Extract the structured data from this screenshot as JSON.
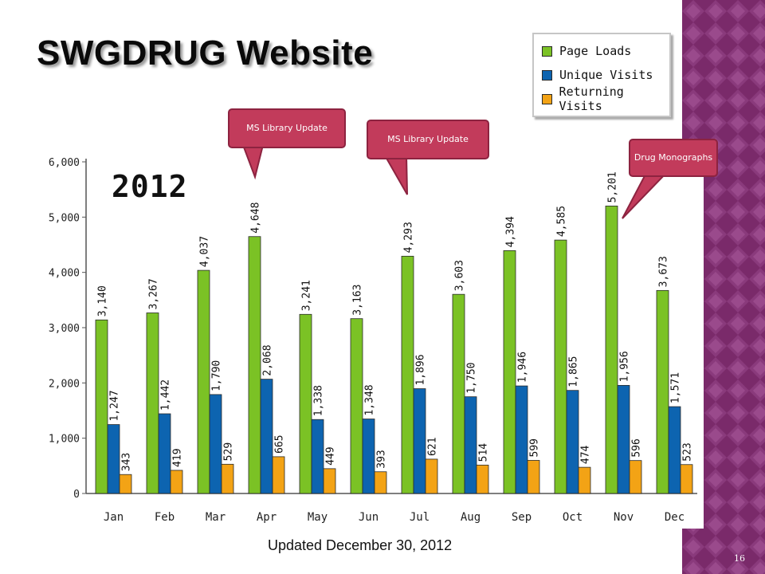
{
  "slide": {
    "title": "SWGDRUG Website",
    "year_label": "2012",
    "updated_text": "Updated December 30, 2012",
    "slide_number": "16",
    "accent_color": "#7a2a6a"
  },
  "callouts": [
    {
      "text": "MS Library Update",
      "color": "#c23b5b"
    },
    {
      "text": "MS Library Update",
      "color": "#c23b5b"
    },
    {
      "text": "Drug Monographs",
      "color": "#c23b5b"
    }
  ],
  "chart_data": {
    "type": "bar",
    "title": "",
    "xlabel": "",
    "ylabel": "",
    "ylim": [
      0,
      6000
    ],
    "yticks": [
      "0",
      "1,000",
      "2,000",
      "3,000",
      "4,000",
      "5,000",
      "6,000"
    ],
    "grid": false,
    "legend_position": "top-right",
    "categories": [
      "Jan",
      "Feb",
      "Mar",
      "Apr",
      "May",
      "Jun",
      "Jul",
      "Aug",
      "Sep",
      "Oct",
      "Nov",
      "Dec"
    ],
    "series": [
      {
        "name": "Page Loads",
        "color": "#7bc225",
        "values": [
          3140,
          3267,
          4037,
          4648,
          3241,
          3163,
          4293,
          3603,
          4394,
          4585,
          5201,
          3673
        ],
        "labels": [
          "3,140",
          "3,267",
          "4,037",
          "4,648",
          "3,241",
          "3,163",
          "4,293",
          "3,603",
          "4,394",
          "4,585",
          "5,201",
          "3,673"
        ]
      },
      {
        "name": "Unique Visits",
        "color": "#0d64b0",
        "values": [
          1247,
          1442,
          1790,
          2068,
          1338,
          1348,
          1896,
          1750,
          1946,
          1865,
          1956,
          1571
        ],
        "labels": [
          "1,247",
          "1,442",
          "1,790",
          "2,068",
          "1,338",
          "1,348",
          "1,896",
          "1,750",
          "1,946",
          "1,865",
          "1,956",
          "1,571"
        ]
      },
      {
        "name": "Returning Visits",
        "color": "#f3a315",
        "values": [
          343,
          419,
          529,
          665,
          449,
          393,
          621,
          514,
          599,
          474,
          596,
          523
        ],
        "labels": [
          "343",
          "419",
          "529",
          "665",
          "449",
          "393",
          "621",
          "514",
          "599",
          "474",
          "596",
          "523"
        ]
      }
    ]
  }
}
